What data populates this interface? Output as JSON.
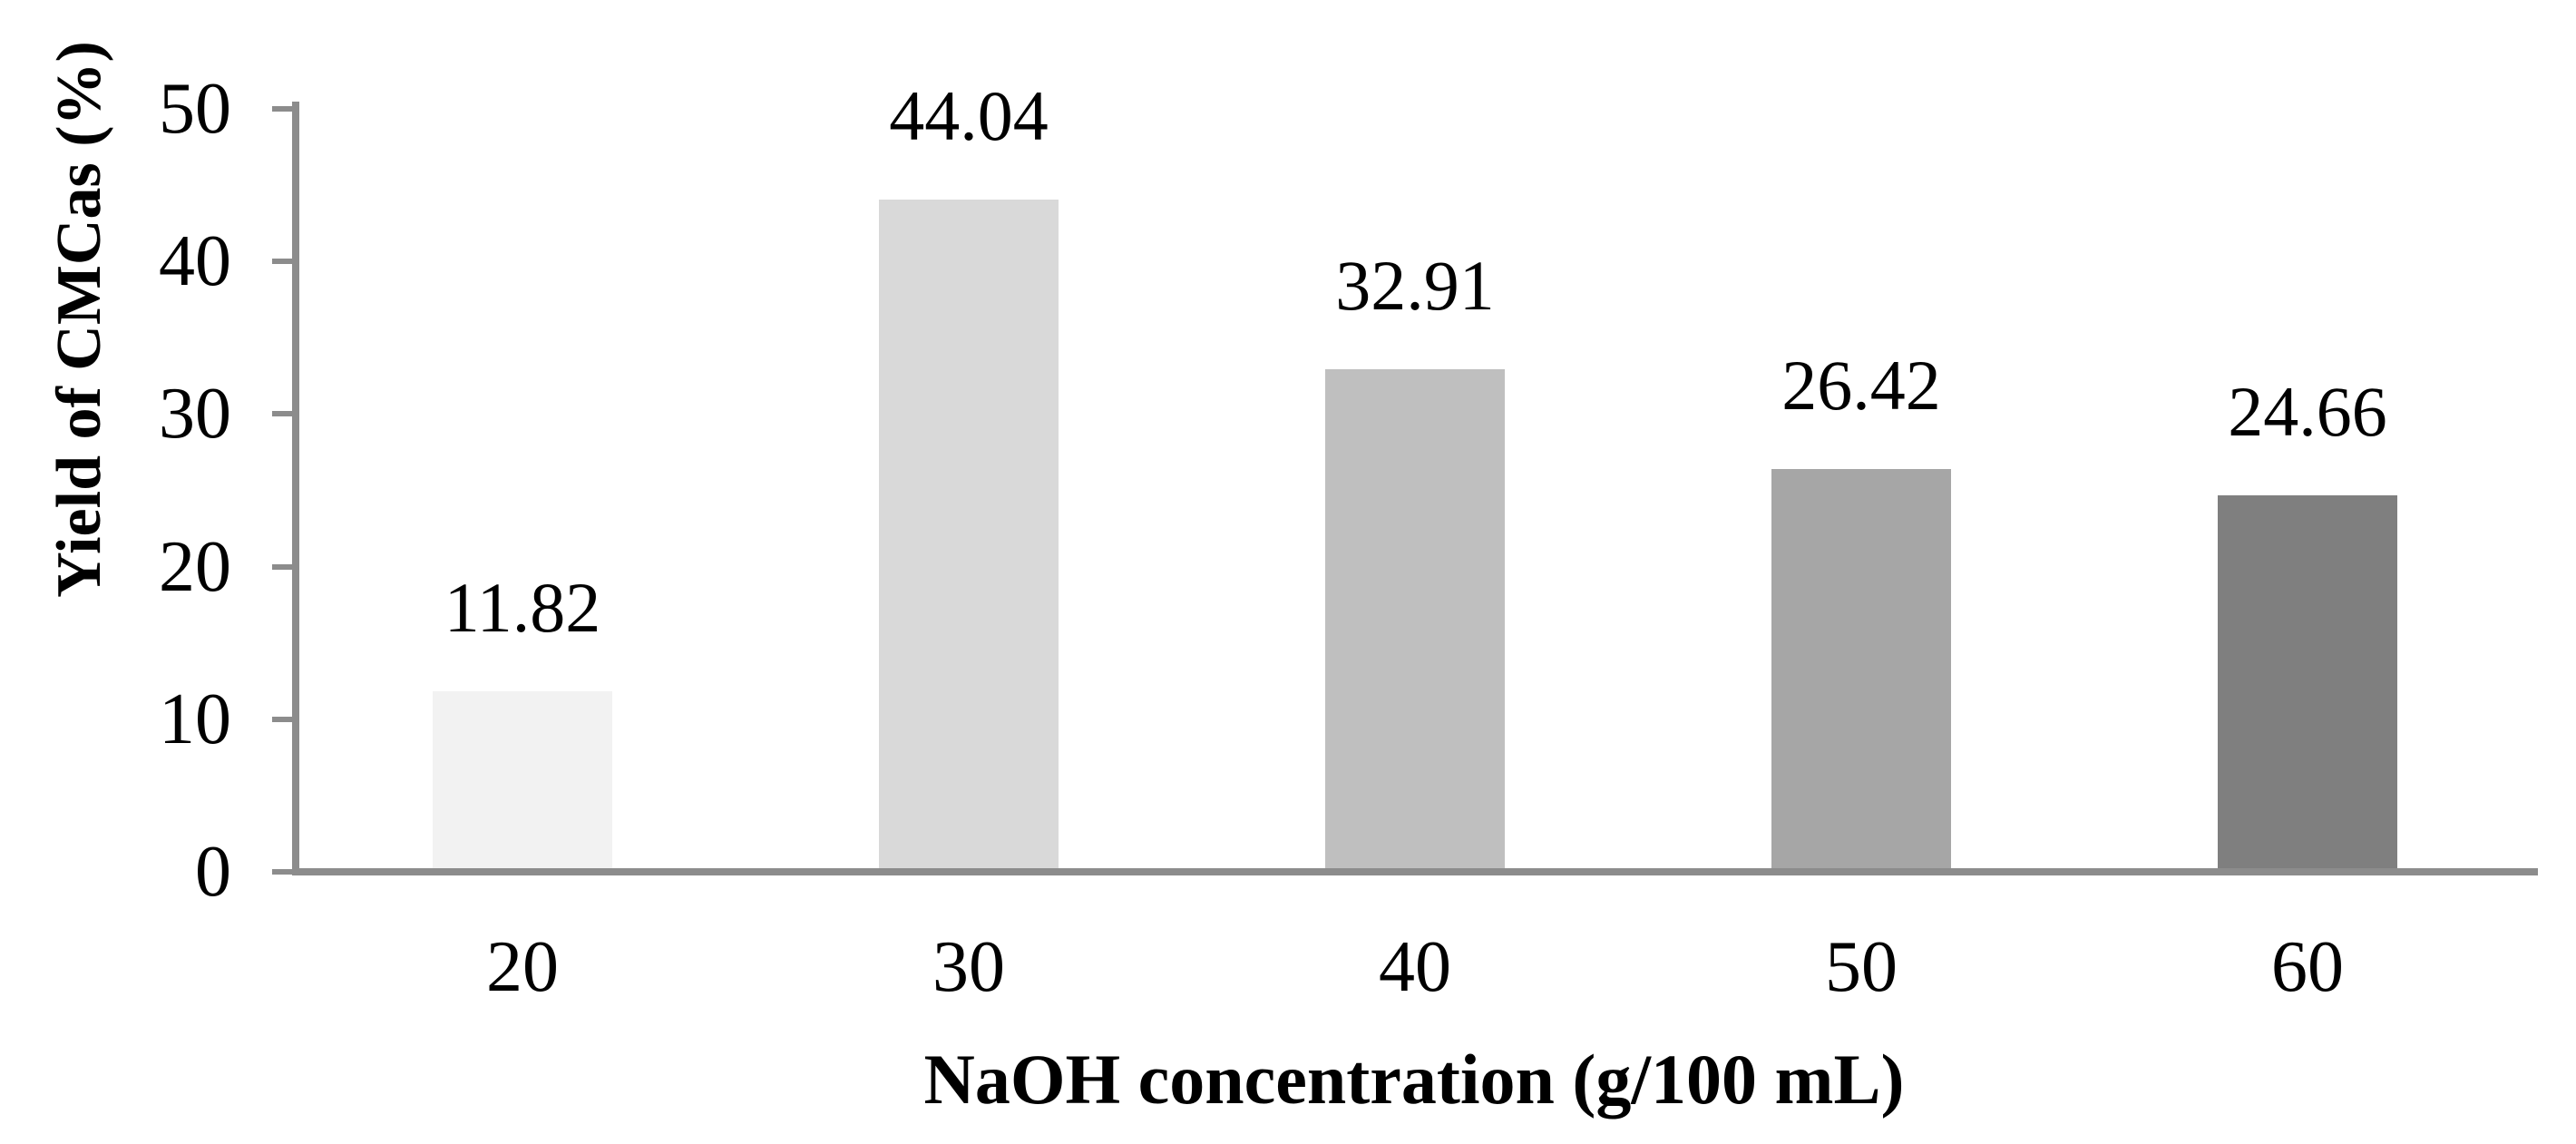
{
  "chart_data": {
    "type": "bar",
    "title": "",
    "categories": [
      "20",
      "30",
      "40",
      "50",
      "60"
    ],
    "values": [
      11.82,
      44.04,
      32.91,
      26.42,
      24.66
    ],
    "value_labels": [
      "11.82",
      "44.04",
      "32.91",
      "26.42",
      "24.66"
    ],
    "xlabel": "NaOH concentration (g/100 mL)",
    "ylabel": "Yield of CMCas (%)",
    "ylim": [
      0,
      50
    ],
    "yticks": [
      0,
      10,
      20,
      30,
      40,
      50
    ],
    "grid": false,
    "legend_position": "none",
    "bar_colors": [
      "#f2f2f2",
      "#d9d9d9",
      "#bfbfbf",
      "#a6a6a6",
      "#7f7f7f"
    ],
    "axis_color": "#8c8c8c",
    "text_color": "#000000",
    "background_color": "#ffffff"
  }
}
